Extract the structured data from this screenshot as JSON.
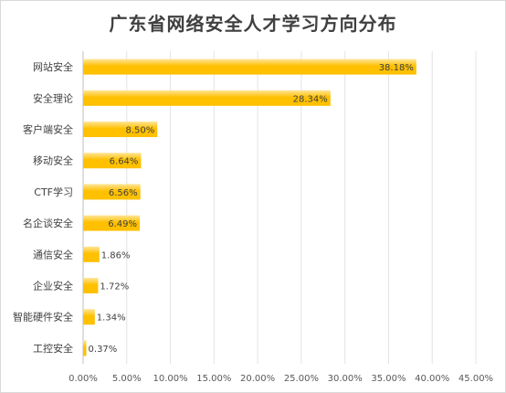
{
  "chart_data": {
    "type": "bar",
    "orientation": "horizontal",
    "title": "广东省网络安全人才学习方向分布",
    "categories": [
      "网站安全",
      "安全理论",
      "客户端安全",
      "移动安全",
      "CTF学习",
      "名企谈安全",
      "通信安全",
      "企业安全",
      "智能硬件安全",
      "工控安全"
    ],
    "values": [
      38.18,
      28.34,
      8.5,
      6.64,
      6.56,
      6.49,
      1.86,
      1.72,
      1.34,
      0.37
    ],
    "data_labels": [
      "38.18%",
      "28.34%",
      "8.50%",
      "6.64%",
      "6.56%",
      "6.49%",
      "1.86%",
      "1.72%",
      "1.34%",
      "0.37%"
    ],
    "x_ticks": [
      "0.00%",
      "5.00%",
      "10.00%",
      "15.00%",
      "20.00%",
      "25.00%",
      "30.00%",
      "35.00%",
      "40.00%",
      "45.00%"
    ],
    "xlim": [
      0,
      45
    ],
    "grid": true,
    "bar_color": "#FFC000",
    "bar_gradient_light": "#FFE699"
  }
}
